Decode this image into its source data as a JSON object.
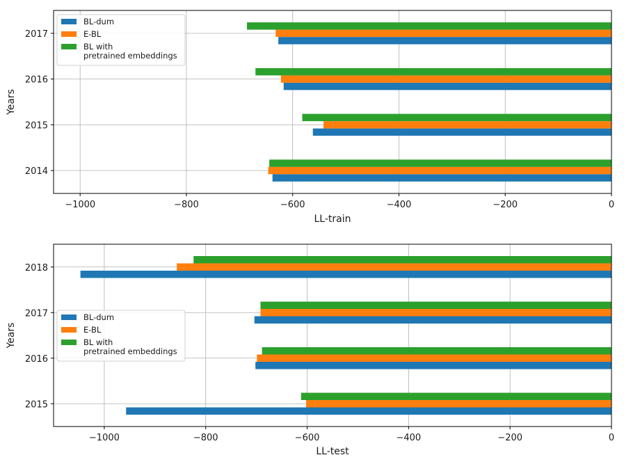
{
  "chart_data": [
    {
      "type": "bar",
      "orientation": "horizontal",
      "title": "",
      "xlabel": "LL-train",
      "ylabel": "Years",
      "xlim": [
        -1050,
        0
      ],
      "xticks": [
        -1000,
        -800,
        -600,
        -400,
        -200,
        0
      ],
      "grid": true,
      "legend_position": "top-left",
      "categories": [
        "2014",
        "2015",
        "2016",
        "2017"
      ],
      "series": [
        {
          "name": "BL-dum",
          "color": "#1f77b4",
          "values": [
            -638,
            -562,
            -617,
            -627
          ]
        },
        {
          "name": "E-BL",
          "color": "#ff7f0e",
          "values": [
            -646,
            -542,
            -622,
            -632
          ]
        },
        {
          "name": "BL with\npretrained embeddings",
          "color": "#2ca02c",
          "values": [
            -644,
            -582,
            -670,
            -686
          ]
        }
      ]
    },
    {
      "type": "bar",
      "orientation": "horizontal",
      "title": "",
      "xlabel": "LL-test",
      "ylabel": "Years",
      "xlim": [
        -1100,
        0
      ],
      "xticks": [
        -1000,
        -800,
        -600,
        -400,
        -200,
        0
      ],
      "grid": true,
      "legend_position": "center-left",
      "categories": [
        "2015",
        "2016",
        "2017",
        "2018"
      ],
      "series": [
        {
          "name": "BL-dum",
          "color": "#1f77b4",
          "values": [
            -957,
            -702,
            -704,
            -1047
          ]
        },
        {
          "name": "E-BL",
          "color": "#ff7f0e",
          "values": [
            -602,
            -699,
            -692,
            -857
          ]
        },
        {
          "name": "BL with\npretrained embeddings",
          "color": "#2ca02c",
          "values": [
            -612,
            -689,
            -692,
            -824
          ]
        }
      ]
    }
  ]
}
